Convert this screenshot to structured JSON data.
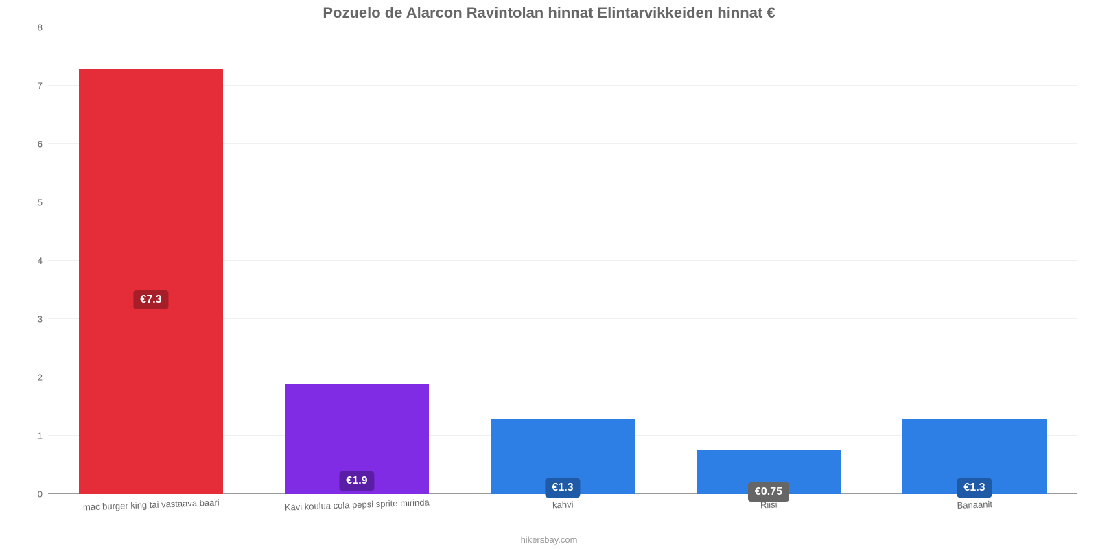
{
  "chart": {
    "type": "bar",
    "title": "Pozuelo de Alarcon Ravintolan hinnat Elintarvikkeiden hinnat €",
    "title_fontsize": 22,
    "title_color": "#666666",
    "attribution": "hikersbay.com",
    "attribution_color": "#999999",
    "background_color": "#ffffff",
    "grid_color": "#f0f0f0",
    "baseline_color": "#999999",
    "axis_label_color": "#666666",
    "axis_label_fontsize": 13,
    "ylim": [
      0,
      8
    ],
    "ytick_step": 1,
    "yticks": [
      0,
      1,
      2,
      3,
      4,
      5,
      6,
      7,
      8
    ],
    "bar_width_pct": 14,
    "bar_gap_pct": 6,
    "x_label_rotation_deg": -2,
    "value_label_fontsize": 16,
    "categories": [
      "mac burger king tai vastaava baari",
      "Kävi koulua cola pepsi sprite mirinda",
      "kahvi",
      "Riisi",
      "Banaanit"
    ],
    "values": [
      7.3,
      1.9,
      1.3,
      0.75,
      1.3
    ],
    "value_labels": [
      "€7.3",
      "€1.9",
      "€1.3",
      "€0.75",
      "€1.3"
    ],
    "bar_colors": [
      "#e52d39",
      "#802ce5",
      "#2d7fe5",
      "#2d7fe5",
      "#2d7fe5"
    ],
    "badge_colors": [
      "#a61e27",
      "#5a1ea6",
      "#1e5aa6",
      "#666666",
      "#1e5aa6"
    ]
  }
}
